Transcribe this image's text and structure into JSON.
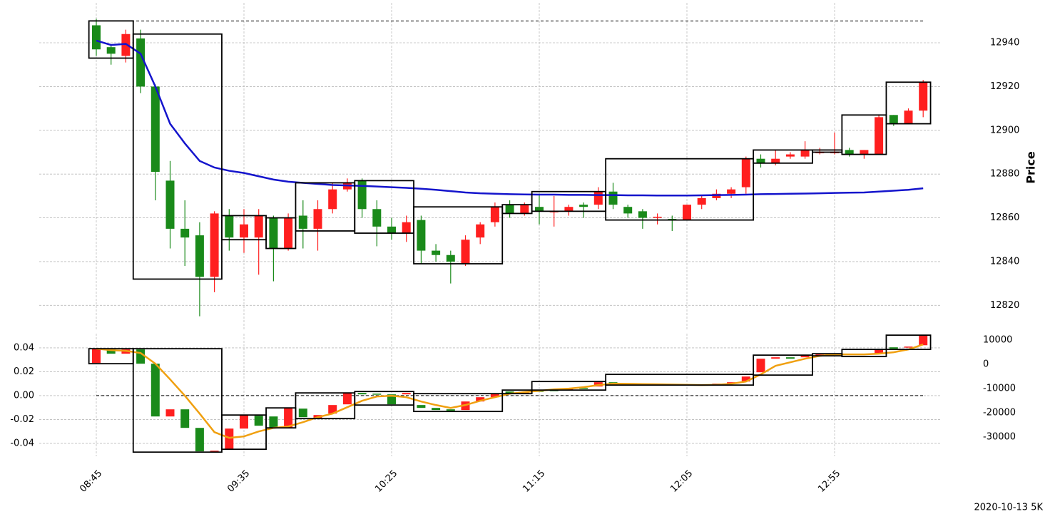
{
  "chart_data": [
    {
      "type": "candlestick",
      "ylabel": "Price",
      "open": [
        12948,
        12938,
        12934,
        12942,
        12920,
        12877,
        12855,
        12852,
        12833,
        12861,
        12851,
        12851,
        12860,
        12846,
        12861,
        12855,
        12864,
        12873,
        12877,
        12864,
        12856,
        12853,
        12859,
        12845,
        12843,
        12839,
        12851,
        12858,
        12866,
        12862,
        12865,
        12863,
        12863,
        12866,
        12866,
        12872,
        12865,
        12863,
        12860,
        12859.5,
        12859,
        12866,
        12869,
        12871,
        12874,
        12887,
        12885,
        12888,
        12888,
        12890,
        12890,
        12891,
        12889,
        12889,
        12907,
        12903,
        12909
      ],
      "high": [
        12951,
        12939,
        12946,
        12946,
        12921,
        12886,
        12868,
        12858,
        12863,
        12864,
        12864,
        12864,
        12861,
        12862,
        12868,
        12868,
        12876,
        12878,
        12878,
        12868,
        12860,
        12861,
        12861,
        12848,
        12845,
        12852,
        12858,
        12867,
        12868,
        12867,
        12871,
        12870,
        12866,
        12867,
        12874,
        12876,
        12866,
        12864,
        12862,
        12861,
        12866,
        12870,
        12873,
        12874,
        12888,
        12889,
        12891,
        12890,
        12895,
        12892,
        12899,
        12892,
        12891,
        12907,
        12907,
        12910,
        12923
      ],
      "low": [
        12934,
        12930,
        12931,
        12917,
        12868,
        12846,
        12838,
        12815,
        12826,
        12845,
        12844,
        12834,
        12831,
        12845,
        12846,
        12845,
        12862,
        12872,
        12860,
        12847,
        12850,
        12849,
        12839,
        12840,
        12830,
        12838,
        12848,
        12856,
        12860,
        12861,
        12857,
        12856,
        12861,
        12860,
        12864,
        12864,
        12860,
        12855,
        12857,
        12854,
        12859,
        12864,
        12868,
        12869,
        12871,
        12883,
        12884,
        12887,
        12887,
        12889,
        12889,
        12888,
        12887,
        12889,
        12902,
        12903,
        12906
      ],
      "close": [
        12937,
        12935,
        12944,
        12920,
        12881,
        12855,
        12851,
        12833,
        12862,
        12851,
        12857,
        12861,
        12846,
        12860,
        12855,
        12864,
        12873,
        12876,
        12864,
        12856,
        12853,
        12858,
        12845,
        12843,
        12840,
        12850,
        12857,
        12865,
        12862,
        12866,
        12863,
        12863,
        12865,
        12865,
        12872,
        12866,
        12862,
        12860,
        12860.5,
        12859,
        12866,
        12869,
        12871,
        12873,
        12887,
        12885,
        12887,
        12889,
        12891,
        12890,
        12890,
        12889,
        12891,
        12906,
        12903,
        12909,
        12922
      ],
      "up_color": "#ff1f1f",
      "down_color": "#1a8a1a",
      "series": [
        {
          "color": "#1414cc",
          "values": [
            12941,
            12939,
            12939.5,
            12935,
            12920,
            12903,
            12894,
            12886,
            12883,
            12881.5,
            12880.5,
            12879,
            12877.5,
            12876.5,
            12876,
            12875.5,
            12875,
            12874.8,
            12874.6,
            12874.3,
            12874,
            12873.7,
            12873.3,
            12872.8,
            12872.2,
            12871.6,
            12871.2,
            12871,
            12870.8,
            12870.7,
            12870.6,
            12870.6,
            12870.5,
            12870.5,
            12870.4,
            12870.4,
            12870.3,
            12870.3,
            12870.2,
            12870.2,
            12870.2,
            12870.3,
            12870.4,
            12870.5,
            12870.6,
            12870.8,
            12870.9,
            12871,
            12871.1,
            12871.2,
            12871.4,
            12871.5,
            12871.6,
            12872,
            12872.4,
            12872.8,
            12873.5
          ]
        }
      ],
      "boxes": [
        {
          "from": 0,
          "to": 2,
          "high": 12950,
          "low": 12933
        },
        {
          "from": 3,
          "to": 8,
          "high": 12944,
          "low": 12832
        },
        {
          "from": 9,
          "to": 11,
          "high": 12861,
          "low": 12850
        },
        {
          "from": 12,
          "to": 13,
          "high": 12860,
          "low": 12846
        },
        {
          "from": 14,
          "to": 17,
          "high": 12876,
          "low": 12854
        },
        {
          "from": 18,
          "to": 21,
          "high": 12877,
          "low": 12853
        },
        {
          "from": 22,
          "to": 27,
          "high": 12865,
          "low": 12839
        },
        {
          "from": 28,
          "to": 29,
          "high": 12866,
          "low": 12862
        },
        {
          "from": 30,
          "to": 34,
          "high": 12872,
          "low": 12863
        },
        {
          "from": 35,
          "to": 44,
          "high": 12887,
          "low": 12859
        },
        {
          "from": 45,
          "to": 48,
          "high": 12891,
          "low": 12885
        },
        {
          "from": 49,
          "to": 50,
          "high": 12891,
          "low": 12890
        },
        {
          "from": 51,
          "to": 53,
          "high": 12907,
          "low": 12889
        },
        {
          "from": 54,
          "to": 56,
          "high": 12922,
          "low": 12903
        }
      ],
      "reference_line": 12950,
      "ylim": [
        12810,
        12955
      ],
      "yticks": [
        12820,
        12840,
        12860,
        12880,
        12900,
        12920,
        12940
      ],
      "grid": true
    },
    {
      "type": "candlestick",
      "note": "2020-10-13 5K",
      "categories": [
        "08:45",
        null,
        null,
        null,
        null,
        null,
        null,
        null,
        null,
        null,
        "09:35",
        null,
        null,
        null,
        null,
        null,
        null,
        null,
        null,
        null,
        "10:25",
        null,
        null,
        null,
        null,
        null,
        null,
        null,
        null,
        null,
        "11:15",
        null,
        null,
        null,
        null,
        null,
        null,
        null,
        null,
        null,
        "12:05",
        null,
        null,
        null,
        null,
        null,
        null,
        null,
        null,
        null,
        "12:55",
        null,
        null,
        null,
        null,
        null,
        null
      ],
      "open": [
        590,
        6180,
        4410,
        6180,
        290,
        -21470,
        -18530,
        -26180,
        -35880,
        -35000,
        -26470,
        -21180,
        -21470,
        -26180,
        -18240,
        -22350,
        -20290,
        -16470,
        -11760,
        -12060,
        -12350,
        -12350,
        -16760,
        -17940,
        -18530,
        -18820,
        -15290,
        -13530,
        -11180,
        -12060,
        -10880,
        -10590,
        -10590,
        -9700,
        -9120,
        -7350,
        -7940,
        -8240,
        -8530,
        -8240,
        -8530,
        -8530,
        -8240,
        -7940,
        -7060,
        -3240,
        2350,
        2940,
        2940,
        3530,
        4410,
        4410,
        4120,
        4410,
        7050,
        7050,
        7900
      ],
      "close": [
        6470,
        4410,
        6180,
        290,
        -21470,
        -18530,
        -26180,
        -35880,
        -35590,
        -26470,
        -20880,
        -25290,
        -26180,
        -17940,
        -21760,
        -20880,
        -16760,
        -11760,
        -12350,
        -12350,
        -16470,
        -11760,
        -17940,
        -18820,
        -19100,
        -15290,
        -13530,
        -12060,
        -12060,
        -11470,
        -11180,
        -10880,
        -10000,
        -10000,
        -7350,
        -7940,
        -8240,
        -8530,
        -8240,
        -8530,
        -8240,
        -8240,
        -7940,
        -7350,
        -5000,
        2350,
        2940,
        2350,
        3530,
        4120,
        4120,
        4120,
        4410,
        6180,
        6470,
        7350,
        11800
      ],
      "candle_axis": "y2",
      "up_color": "#ff1f1f",
      "down_color": "#1a8a1a",
      "series": [
        {
          "color": "#f0a010",
          "axis": "y2",
          "values": [
            6470,
            5880,
            5590,
            4700,
            300,
            -6180,
            -12940,
            -20290,
            -27940,
            -30290,
            -29710,
            -27650,
            -26180,
            -25590,
            -23820,
            -21760,
            -20290,
            -17650,
            -15000,
            -13240,
            -12940,
            -13530,
            -15290,
            -16760,
            -17940,
            -16760,
            -15000,
            -13530,
            -12060,
            -11470,
            -10880,
            -10290,
            -10000,
            -9410,
            -8530,
            -7940,
            -8000,
            -8100,
            -8200,
            -8300,
            -8400,
            -8500,
            -8400,
            -8000,
            -7060,
            -4120,
            -590,
            880,
            2350,
            3530,
            4120,
            4120,
            4120,
            4410,
            5000,
            6180,
            8240
          ]
        }
      ],
      "boxes": [
        {
          "from": 0,
          "to": 2,
          "high": 6470,
          "low": 290
        },
        {
          "from": 3,
          "to": 8,
          "high": 6470,
          "low": -36180
        },
        {
          "from": 9,
          "to": 11,
          "high": -20880,
          "low": -35000
        },
        {
          "from": 12,
          "to": 13,
          "high": -17940,
          "low": -26180
        },
        {
          "from": 14,
          "to": 17,
          "high": -11760,
          "low": -22350
        },
        {
          "from": 18,
          "to": 21,
          "high": -11180,
          "low": -16760
        },
        {
          "from": 22,
          "to": 27,
          "high": -12060,
          "low": -19410
        },
        {
          "from": 28,
          "to": 29,
          "high": -10590,
          "low": -12060
        },
        {
          "from": 30,
          "to": 34,
          "high": -7060,
          "low": -10590
        },
        {
          "from": 35,
          "to": 44,
          "high": -4120,
          "low": -8530
        },
        {
          "from": 45,
          "to": 48,
          "high": 3820,
          "low": -4410
        },
        {
          "from": 49,
          "to": 50,
          "high": 4410,
          "low": 3530
        },
        {
          "from": 51,
          "to": 53,
          "high": 6180,
          "low": 3240
        },
        {
          "from": 54,
          "to": 56,
          "high": 12060,
          "low": 6180
        }
      ],
      "reference_line": 0,
      "ylim": [
        -0.049,
        0.0507
      ],
      "yticks": [
        0.04,
        0.02,
        {
          "value": 0,
          "label": "0.00"
        },
        -0.02,
        -0.04
      ],
      "y2lim": [
        -37000,
        12100
      ],
      "y2ticks": [
        10000,
        0,
        -10000,
        -20000,
        -30000
      ],
      "grid": true
    }
  ]
}
